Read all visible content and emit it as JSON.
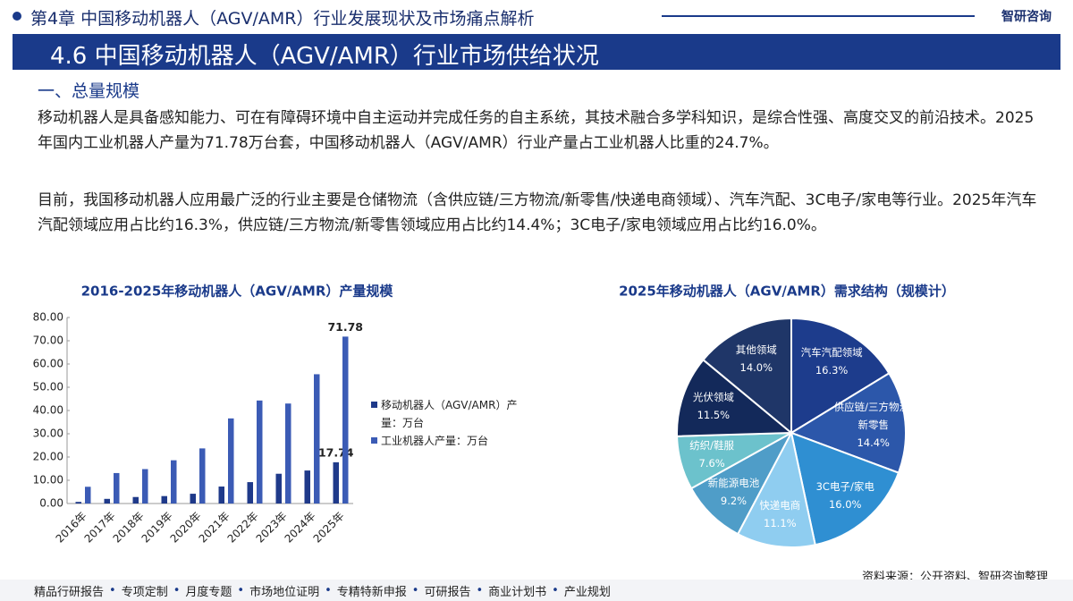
{
  "header": {
    "chapter": "第4章 中国移动机器人（AGV/AMR）行业发展现状及市场痛点解析",
    "brand": "智研咨询"
  },
  "section": {
    "title": "4.6 中国移动机器人（AGV/AMR）行业市场供给状况",
    "subtitle": "一、总量规模"
  },
  "paragraphs": [
    "移动机器人是具备感知能力、可在有障碍环境中自主运动并完成任务的自主系统，其技术融合多学科知识，是综合性强、高度交叉的前沿技术。2025年国内工业机器人产量为71.78万台套，中国移动机器人（AGV/AMR）行业产量占工业机器人比重的24.7%。",
    "目前，我国移动机器人应用最广泛的行业主要是仓储物流（含供应链/三方物流/新零售/快递电商领域）、汽车汽配、3C电子/家电等行业。2025年汽车汽配领域应用占比约16.3%，供应链/三方物流/新零售领域应用占比约14.4%；3C电子/家电领域应用占比约16.0%。"
  ],
  "chart_data": [
    {
      "type": "bar",
      "title": "2016-2025年移动机器人（AGV/AMR）产量规模",
      "categories": [
        "2016年",
        "2017年",
        "2018年",
        "2019年",
        "2020年",
        "2021年",
        "2022年",
        "2023年",
        "2024年",
        "2025年"
      ],
      "series": [
        {
          "name": "移动机器人（AGV/AMR）产量：万台",
          "color": "#1f3a8a",
          "values": [
            0.7,
            2.0,
            2.8,
            3.2,
            4.2,
            7.3,
            9.2,
            12.8,
            14.2,
            17.74
          ],
          "value_labels": [
            null,
            null,
            null,
            null,
            null,
            null,
            null,
            null,
            null,
            "17.74"
          ]
        },
        {
          "name": "工业机器人产量：万台",
          "color": "#3b5bb5",
          "values": [
            7.2,
            13.1,
            14.8,
            18.6,
            23.7,
            36.6,
            44.3,
            43.0,
            55.6,
            71.78
          ],
          "value_labels": [
            null,
            null,
            null,
            null,
            null,
            null,
            null,
            null,
            null,
            "71.78"
          ]
        }
      ],
      "ylim": [
        0,
        80
      ],
      "yticks": [
        {
          "value": 0,
          "label": "0.00"
        },
        {
          "value": 10,
          "label": "10.00"
        },
        {
          "value": 20,
          "label": "20.00"
        },
        {
          "value": 30,
          "label": "30.00"
        },
        {
          "value": 40,
          "label": "40.00"
        },
        {
          "value": 50,
          "label": "50.00"
        },
        {
          "value": 60,
          "label": "60.00"
        },
        {
          "value": 70,
          "label": "70.00"
        },
        {
          "value": 80,
          "label": "80.00"
        }
      ]
    },
    {
      "type": "pie",
      "title": "2025年移动机器人（AGV/AMR）需求结构（规模计）",
      "categories": [
        "汽车汽配领域",
        "供应链/三方物流/新零售",
        "3C电子/家电",
        "快递电商",
        "新能源电池",
        "纺织/鞋服",
        "光伏领域",
        "其他领域"
      ],
      "values": [
        16.3,
        14.4,
        16.0,
        11.1,
        9.2,
        7.6,
        11.5,
        14.0
      ],
      "value_labels": [
        "16.3%",
        "14.4%",
        "16.0%",
        "11.1%",
        "9.2%",
        "7.6%",
        "11.5%",
        "14.0%"
      ],
      "colors": [
        "#1d3c8c",
        "#2c57aa",
        "#2f8fd2",
        "#8fcdf0",
        "#4f9dc8",
        "#6cc2cc",
        "#13295a",
        "#1f3668"
      ]
    }
  ],
  "source": "资料来源：公开资料、智研咨询整理",
  "footer": [
    "精品行研报告",
    "专项定制",
    "月度专题",
    "市场地位证明",
    "专精特新申报",
    "可研报告",
    "商业计划书",
    "产业规划"
  ]
}
